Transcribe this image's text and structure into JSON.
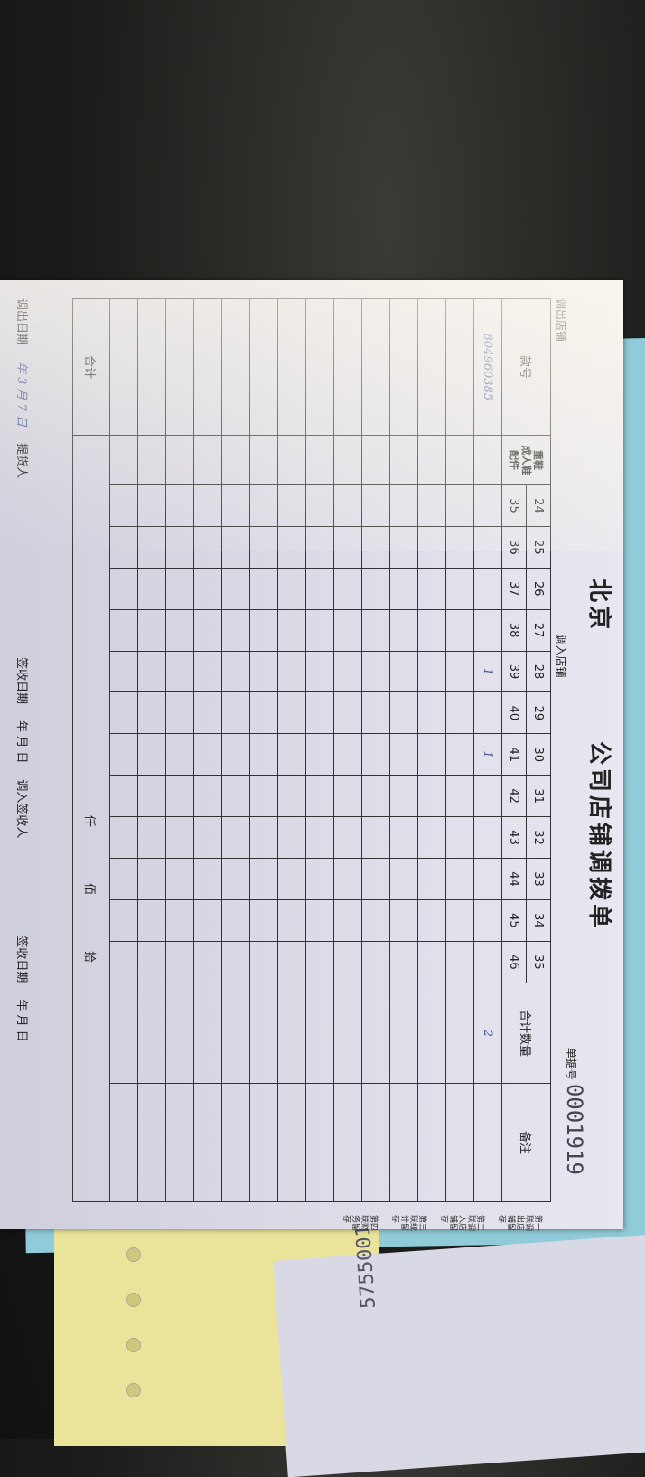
{
  "form": {
    "title": "北京　　　　公司店铺调拨单",
    "doc_no_label": "单据号",
    "doc_no": "0001919",
    "out_store_label": "调出店铺",
    "out_store_value": "",
    "in_store_label": "调入店铺",
    "in_store_value": "",
    "col_style": "款号",
    "attr_labels": [
      "重鞋",
      "成人鞋",
      "配件"
    ],
    "sizes_row1": [
      "24",
      "25",
      "26",
      "27",
      "28",
      "29",
      "30",
      "31",
      "32",
      "33",
      "34",
      "35"
    ],
    "sizes_row2": [
      "35",
      "36",
      "37",
      "38",
      "39",
      "40",
      "41",
      "42",
      "43",
      "44",
      "45",
      "46"
    ],
    "col_total_qty": "合计数量",
    "col_remark": "备注",
    "rows": [
      {
        "style": "804960385",
        "cells": [
          "",
          "",
          "",
          "",
          "1",
          "",
          "1",
          "",
          "",
          "",
          "",
          ""
        ],
        "total": "2"
      }
    ],
    "total_label": "合计",
    "total_units": [
      "仟",
      "佰",
      "拾"
    ],
    "footer": {
      "out_date_label": "调出日期",
      "out_date_value": "年 3 月 7 日",
      "picker_label": "提货人",
      "sign_date_label": "签收日期",
      "sign_date_value": "年 月 日",
      "in_signer_label": "调入签收人",
      "in_sign_date_label": "签收日期",
      "in_sign_date_value": "年 月 日"
    },
    "copies": [
      "第一联调出店铺留存",
      "第二联调入店铺留存",
      "第三联统计留存",
      "第四联财务留存"
    ]
  },
  "lower_sheet": {
    "number": "5755001"
  }
}
